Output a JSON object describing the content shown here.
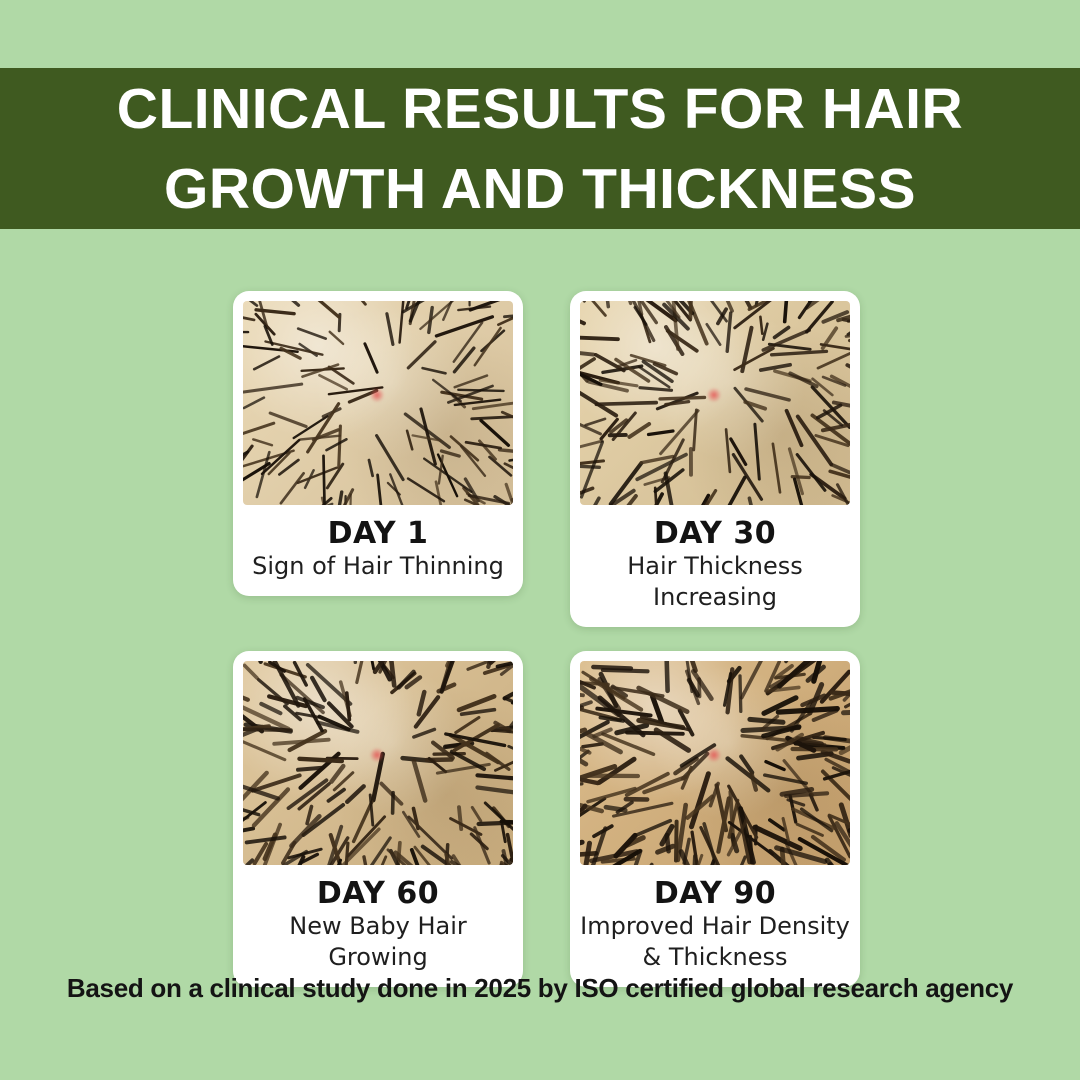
{
  "page": {
    "background_color": "#b0d9a6",
    "header": {
      "background_color": "#3f5a20",
      "text_color": "#ffffff",
      "title_line1": "CLINICAL RESULTS FOR HAIR",
      "title_line2": "GROWTH AND THICKNESS"
    },
    "cards": [
      {
        "day": "DAY 1",
        "lines": [
          "Sign of Hair Thinning"
        ],
        "image_alt": "scalp close-up photo day 1"
      },
      {
        "day": "DAY 30",
        "lines": [
          "Hair Thickness Increasing"
        ],
        "image_alt": "scalp close-up photo day 30"
      },
      {
        "day": "DAY 60",
        "lines": [
          "New Baby Hair Growing"
        ],
        "image_alt": "scalp close-up photo day 60"
      },
      {
        "day": "DAY 90",
        "lines": [
          "Improved Hair Density",
          "& Thickness"
        ],
        "image_alt": "scalp close-up photo day 90"
      }
    ],
    "footer": {
      "text": "Based on a clinical study done in 2025 by ISO certified global research agency",
      "text_color": "#141414"
    }
  }
}
